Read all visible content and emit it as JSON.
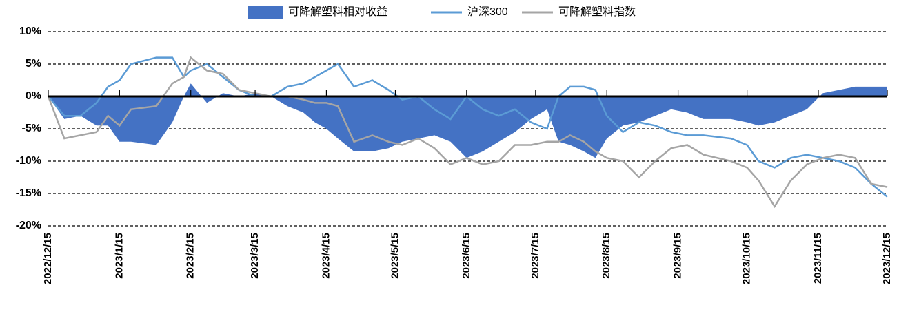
{
  "chart_data": {
    "type": "line",
    "x": [
      "2022/12/15",
      "2022/12/22",
      "2022/12/29",
      "2023/1/5",
      "2023/1/10",
      "2023/1/15",
      "2023/1/20",
      "2023/1/31",
      "2023/2/7",
      "2023/2/12",
      "2023/2/15",
      "2023/2/22",
      "2023/3/1",
      "2023/3/8",
      "2023/3/15",
      "2023/3/22",
      "2023/3/29",
      "2023/4/5",
      "2023/4/10",
      "2023/4/15",
      "2023/4/20",
      "2023/4/27",
      "2023/5/5",
      "2023/5/12",
      "2023/5/18",
      "2023/5/25",
      "2023/6/1",
      "2023/6/8",
      "2023/6/15",
      "2023/6/22",
      "2023/6/29",
      "2023/7/6",
      "2023/7/13",
      "2023/7/20",
      "2023/7/25",
      "2023/7/30",
      "2023/8/5",
      "2023/8/10",
      "2023/8/15",
      "2023/8/22",
      "2023/8/29",
      "2023/9/5",
      "2023/9/12",
      "2023/9/19",
      "2023/9/26",
      "2023/10/8",
      "2023/10/15",
      "2023/10/20",
      "2023/10/27",
      "2023/11/3",
      "2023/11/10",
      "2023/11/17",
      "2023/11/24",
      "2023/12/1",
      "2023/12/8",
      "2023/12/15"
    ],
    "series": [
      {
        "name": "可降解塑料相对收益",
        "type": "area",
        "color": "#4472c4",
        "values": [
          0,
          -3.5,
          -3,
          -4.5,
          -4.5,
          -7,
          -7,
          -7.5,
          -4,
          0,
          2,
          -1,
          0.5,
          0,
          0.5,
          0,
          -1.5,
          -2.5,
          -4,
          -5,
          -6.5,
          -8.5,
          -8.5,
          -8,
          -7,
          -6.5,
          -6,
          -7,
          -9.5,
          -8.5,
          -7,
          -5.5,
          -3.5,
          -2,
          -7,
          -7.5,
          -8.5,
          -9.5,
          -6.5,
          -4.5,
          -4,
          -3,
          -2,
          -2.5,
          -3.5,
          -3.5,
          -4,
          -4.5,
          -4,
          -3,
          -2,
          0.5,
          1,
          1.5,
          1.5,
          1.5
        ]
      },
      {
        "name": "沪深300",
        "type": "line",
        "color": "#5b9bd5",
        "values": [
          0,
          -3,
          -3,
          -1,
          1.5,
          2.5,
          5,
          6,
          6,
          3,
          4,
          5,
          3,
          1,
          0,
          0,
          1.5,
          2,
          3,
          4,
          5,
          1.5,
          2.5,
          1,
          -0.5,
          0,
          -2,
          -3.5,
          0,
          -2,
          -3,
          -2,
          -4,
          -5,
          0,
          1.5,
          1.5,
          1,
          -3,
          -5.5,
          -4,
          -4.5,
          -5.5,
          -6,
          -6,
          -6.5,
          -7.5,
          -10,
          -11,
          -9.5,
          -9,
          -9.5,
          -10,
          -11,
          -13.5,
          -15.5
        ]
      },
      {
        "name": "可降解塑料指数",
        "type": "line",
        "color": "#a5a5a5",
        "values": [
          0,
          -6.5,
          -6,
          -5.5,
          -3,
          -4.5,
          -2,
          -1.5,
          2,
          3,
          6,
          4,
          3.5,
          1,
          0.5,
          0,
          0,
          -0.5,
          -1,
          -1,
          -1.5,
          -7,
          -6,
          -7,
          -7.5,
          -6.5,
          -8,
          -10.5,
          -9.5,
          -10.5,
          -10,
          -7.5,
          -7.5,
          -7,
          -7,
          -6,
          -7,
          -8.5,
          -9.5,
          -10,
          -12.5,
          -10,
          -8,
          -7.5,
          -9,
          -10,
          -11,
          -13,
          -17,
          -13,
          -10.5,
          -9.5,
          -9,
          -9.5,
          -13.5,
          -14
        ]
      }
    ],
    "xlim": [
      "2022/12/15",
      "2023/12/15"
    ],
    "xticks": [
      "2022/12/15",
      "2023/1/15",
      "2023/2/15",
      "2023/3/15",
      "2023/4/15",
      "2023/5/15",
      "2023/6/15",
      "2023/7/15",
      "2023/8/15",
      "2023/9/15",
      "2023/10/15",
      "2023/11/15",
      "2023/12/15"
    ],
    "ylim": [
      -20,
      10
    ],
    "yticks": [
      {
        "value": -20,
        "label": "-20%"
      },
      {
        "value": -15,
        "label": "-15%"
      },
      {
        "value": -10,
        "label": "-10%"
      },
      {
        "value": -5,
        "label": "-5%"
      },
      {
        "value": 0,
        "label": "0%"
      },
      {
        "value": 5,
        "label": "5%"
      },
      {
        "value": 10,
        "label": "10%"
      }
    ],
    "grid": true,
    "legend": "top"
  }
}
